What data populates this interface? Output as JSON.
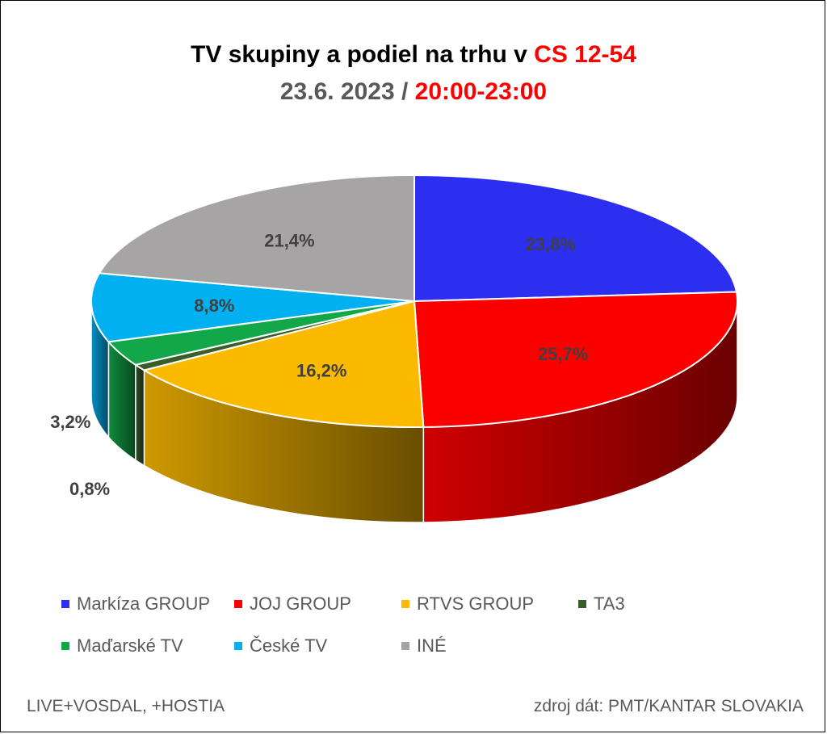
{
  "header": {
    "title_prefix": "TV skupiny a podiel na trhu v ",
    "title_accent": "CS 12-54",
    "date": "23.6. 2023",
    "separator": " / ",
    "timeslot": "20:00-23:00",
    "accent_color": "#ff0000"
  },
  "chart_data": {
    "type": "pie",
    "style": "3d-exploded-none",
    "categories": [
      "Markíza GROUP",
      "JOJ GROUP",
      "RTVS GROUP",
      "TA3",
      "Maďarské  TV",
      "České  TV",
      "INÉ"
    ],
    "values": [
      23.8,
      25.7,
      16.2,
      0.8,
      3.2,
      8.8,
      21.4
    ],
    "labels": [
      "23,8%",
      "25,7%",
      "16,2%",
      "0,8%",
      "3,2%",
      "8,8%",
      "21,4%"
    ],
    "colors": [
      "#2c2ff0",
      "#fc0000",
      "#fbba00",
      "#3a5e2a",
      "#12a84a",
      "#01b0f0",
      "#a6a4a4"
    ],
    "legend_position": "bottom"
  },
  "legend": {
    "items": [
      {
        "label": "Markíza GROUP",
        "color": "#2c2ff0"
      },
      {
        "label": "JOJ GROUP",
        "color": "#fc0000"
      },
      {
        "label": "RTVS GROUP",
        "color": "#fbba00"
      },
      {
        "label": "TA3",
        "color": "#3a5e2a"
      },
      {
        "label": "Maďarské  TV",
        "color": "#12a84a"
      },
      {
        "label": "České  TV",
        "color": "#01b0f0"
      },
      {
        "label": "INÉ",
        "color": "#a6a4a4"
      }
    ]
  },
  "footer": {
    "left": "LIVE+VOSDAL, +HOSTIA",
    "right": "zdroj dát: PMT/KANTAR SLOVAKIA"
  }
}
